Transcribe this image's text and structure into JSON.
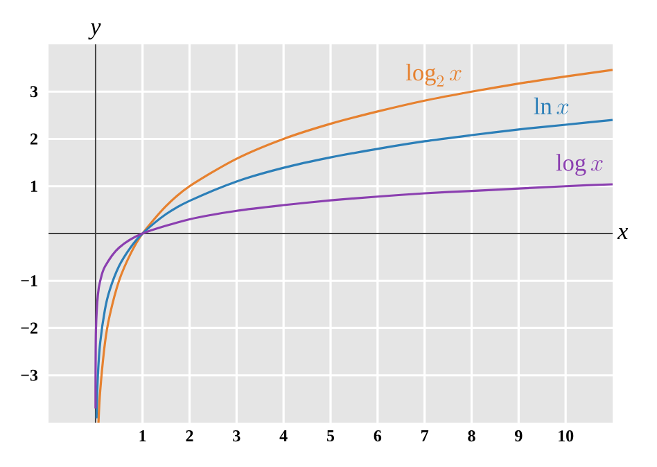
{
  "chart_data": {
    "type": "line",
    "xlabel": "x",
    "ylabel": "y",
    "xlim": [
      -1,
      11
    ],
    "ylim": [
      -4,
      4
    ],
    "xticks": [
      1,
      2,
      3,
      4,
      5,
      6,
      7,
      8,
      9,
      10
    ],
    "yticks": [
      {
        "value": -3,
        "label": "−3"
      },
      {
        "value": -2,
        "label": "−2"
      },
      {
        "value": -1,
        "label": "−1"
      },
      1,
      2,
      3
    ],
    "grid": true,
    "line_style": "solid",
    "marker": "none",
    "series": [
      {
        "name": "\\log_2 x",
        "color": "#e6812f",
        "x": [
          0.0625,
          0.1,
          0.2,
          0.3,
          0.5,
          0.75,
          1,
          1.5,
          2,
          3,
          4,
          5,
          6,
          7,
          8,
          9,
          10,
          11
        ],
        "values": [
          -4,
          -3.32,
          -2.32,
          -1.74,
          -1,
          -0.42,
          0,
          0.58,
          1,
          1.58,
          2,
          2.32,
          2.58,
          2.81,
          3,
          3.17,
          3.32,
          3.46
        ]
      },
      {
        "name": "\\ln x",
        "color": "#2c7fb8",
        "x": [
          0.02,
          0.05,
          0.1,
          0.2,
          0.3,
          0.5,
          0.75,
          1,
          1.5,
          2,
          3,
          4,
          5,
          6,
          7,
          8,
          9,
          10,
          11
        ],
        "values": [
          -3.91,
          -3.0,
          -2.3,
          -1.61,
          -1.2,
          -0.69,
          -0.29,
          0,
          0.41,
          0.69,
          1.1,
          1.39,
          1.61,
          1.79,
          1.95,
          2.08,
          2.2,
          2.3,
          2.4
        ]
      },
      {
        "name": "\\log x",
        "color": "#8b3fb0",
        "x": [
          0.0002,
          0.001,
          0.01,
          0.05,
          0.1,
          0.2,
          0.5,
          1,
          2,
          3,
          4,
          5,
          6,
          7,
          8,
          9,
          10,
          11
        ],
        "values": [
          -3.7,
          -3,
          -2,
          -1.3,
          -1,
          -0.7,
          -0.3,
          0,
          0.3,
          0.48,
          0.6,
          0.7,
          0.78,
          0.85,
          0.9,
          0.95,
          1,
          1.04
        ]
      }
    ]
  }
}
